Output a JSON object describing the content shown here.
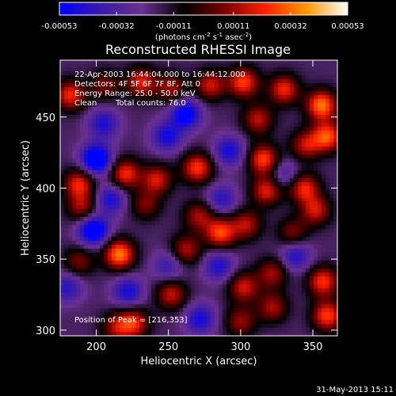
{
  "chart_data": {
    "type": "heatmap",
    "title": "Reconstructed RHESSI Image",
    "xlabel": "Heliocentric X (arcsec)",
    "ylabel": "Heliocentric Y (arcsec)",
    "xlim": [
      175,
      367
    ],
    "ylim": [
      296,
      490
    ],
    "x_ticks": [
      200,
      250,
      300,
      350
    ],
    "y_ticks": [
      300,
      350,
      400,
      450
    ],
    "x_tick_labels": [
      "200",
      "250",
      "300",
      "350"
    ],
    "y_tick_labels": [
      "300",
      "350",
      "400",
      "450"
    ],
    "colorbar": {
      "min": -0.00053,
      "max": 0.00053,
      "tick_values": [
        -0.00053,
        -0.00032,
        -0.00011,
        0.00011,
        0.00032,
        0.00053
      ],
      "tick_labels": [
        "-0.00053",
        "-0.00032",
        "-0.00011",
        "0.00011",
        "0.00032",
        "0.00053"
      ],
      "units_pre": "(photons cm",
      "units_exp1": "-2",
      "units_mid1": " s",
      "units_exp2": "-1",
      "units_mid2": " asec",
      "units_exp3": "-2",
      "units_post": ")",
      "stops": [
        "#0000ff",
        "#3a1aa8",
        "#6a3090",
        "#000000",
        "#7a0000",
        "#ff2000",
        "#ff9800",
        "#ffffff"
      ]
    },
    "peak": {
      "x": 216,
      "y": 353
    },
    "sources": [
      {
        "x": 182,
        "y": 465,
        "v": 0.0004
      },
      {
        "x": 206,
        "y": 472,
        "v": 0.00025
      },
      {
        "x": 231,
        "y": 474,
        "v": 0.00038
      },
      {
        "x": 252,
        "y": 470,
        "v": 0.0003
      },
      {
        "x": 279,
        "y": 472,
        "v": 0.00035
      },
      {
        "x": 302,
        "y": 474,
        "v": 0.00044
      },
      {
        "x": 330,
        "y": 469,
        "v": 0.0004
      },
      {
        "x": 356,
        "y": 458,
        "v": 0.00052
      },
      {
        "x": 360,
        "y": 436,
        "v": 0.00046
      },
      {
        "x": 345,
        "y": 430,
        "v": 0.00032
      },
      {
        "x": 312,
        "y": 448,
        "v": 0.00033
      },
      {
        "x": 316,
        "y": 420,
        "v": 0.00045
      },
      {
        "x": 318,
        "y": 398,
        "v": 0.00038
      },
      {
        "x": 344,
        "y": 400,
        "v": 0.0004
      },
      {
        "x": 352,
        "y": 384,
        "v": 0.00035
      },
      {
        "x": 304,
        "y": 374,
        "v": 0.00032
      },
      {
        "x": 322,
        "y": 340,
        "v": 0.0003
      },
      {
        "x": 302,
        "y": 330,
        "v": 0.00035
      },
      {
        "x": 322,
        "y": 316,
        "v": 0.0003
      },
      {
        "x": 357,
        "y": 334,
        "v": 0.00042
      },
      {
        "x": 360,
        "y": 310,
        "v": 0.00044
      },
      {
        "x": 336,
        "y": 368,
        "v": 0.00025
      },
      {
        "x": 286,
        "y": 368,
        "v": 0.00045
      },
      {
        "x": 270,
        "y": 414,
        "v": 0.00043
      },
      {
        "x": 271,
        "y": 380,
        "v": 0.0003
      },
      {
        "x": 262,
        "y": 356,
        "v": 0.00032
      },
      {
        "x": 252,
        "y": 325,
        "v": 0.00034
      },
      {
        "x": 226,
        "y": 305,
        "v": 0.00038
      },
      {
        "x": 234,
        "y": 388,
        "v": 0.00025
      },
      {
        "x": 242,
        "y": 406,
        "v": 0.00036
      },
      {
        "x": 220,
        "y": 410,
        "v": 0.00041
      },
      {
        "x": 188,
        "y": 403,
        "v": 0.0004
      },
      {
        "x": 190,
        "y": 386,
        "v": 0.0003
      },
      {
        "x": 216,
        "y": 353,
        "v": 0.00053
      },
      {
        "x": 188,
        "y": 348,
        "v": 0.00025
      },
      {
        "x": 214,
        "y": 302,
        "v": 0.00028
      },
      {
        "x": 300,
        "y": 306,
        "v": 0.00028
      },
      {
        "x": 262,
        "y": 452,
        "v": -0.0004
      },
      {
        "x": 249,
        "y": 436,
        "v": -0.0003
      },
      {
        "x": 205,
        "y": 445,
        "v": -0.00028
      },
      {
        "x": 200,
        "y": 420,
        "v": -0.0005
      },
      {
        "x": 210,
        "y": 392,
        "v": -0.0003
      },
      {
        "x": 198,
        "y": 370,
        "v": -0.00047
      },
      {
        "x": 222,
        "y": 327,
        "v": -0.0003
      },
      {
        "x": 285,
        "y": 345,
        "v": -0.00028
      },
      {
        "x": 272,
        "y": 308,
        "v": -0.0003
      },
      {
        "x": 338,
        "y": 352,
        "v": -0.00028
      },
      {
        "x": 292,
        "y": 426,
        "v": -0.0003
      },
      {
        "x": 287,
        "y": 392,
        "v": -0.00025
      },
      {
        "x": 330,
        "y": 410,
        "v": -0.0002
      },
      {
        "x": 250,
        "y": 345,
        "v": -0.00022
      },
      {
        "x": 180,
        "y": 330,
        "v": -0.00025
      }
    ]
  },
  "info": {
    "time_range": "22-Apr-2003 16:44:04.000 to 16:44:12.000",
    "detectors": "Detectors: 4F 5F 6F 7F 8F, Att 0",
    "energy": "Energy Range: 25.0 - 50.0 keV",
    "method": "Clean",
    "counts": "Total counts: 76.0",
    "peak_label": "Position of Peak = [216,353]"
  },
  "footer": {
    "date": "31-May-2013 15:11"
  }
}
